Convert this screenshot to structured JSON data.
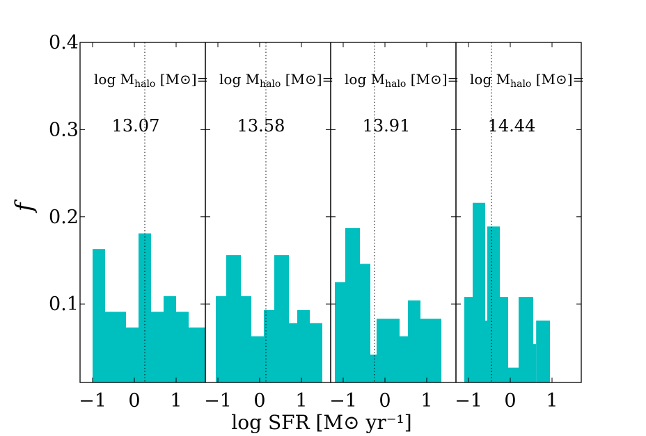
{
  "chart_data": {
    "type": "bar",
    "subtype": "histogram-panels",
    "ylabel": "f",
    "xlabel": "log SFR [M⊙ yr⁻¹]",
    "xlim": [
      -1.3,
      1.7
    ],
    "ylim": [
      0.01,
      0.4
    ],
    "yticks": [
      0.1,
      0.2,
      0.3,
      0.4
    ],
    "ytick_labels": [
      "0.1",
      "0.2",
      "0.3",
      "0.4"
    ],
    "xticks": [
      -1,
      0,
      1
    ],
    "xtick_labels": [
      "−1",
      "0",
      "1"
    ],
    "bar_color": "#00bfbf",
    "panels": [
      {
        "label": "log M",
        "label_sub": "halo",
        "label_tail": " [M⊙]=",
        "halo_mass": "13.07",
        "median": 0.25,
        "bins": [
          {
            "x0": -1.0,
            "x1": -0.7,
            "y": 0.163
          },
          {
            "x0": -0.7,
            "x1": -0.2,
            "y": 0.091
          },
          {
            "x0": -0.2,
            "x1": 0.1,
            "y": 0.073
          },
          {
            "x0": 0.1,
            "x1": 0.4,
            "y": 0.181
          },
          {
            "x0": 0.4,
            "x1": 0.7,
            "y": 0.091
          },
          {
            "x0": 0.7,
            "x1": 1.0,
            "y": 0.109
          },
          {
            "x0": 1.0,
            "x1": 1.3,
            "y": 0.091
          },
          {
            "x0": 1.3,
            "x1": 1.7,
            "y": 0.073
          }
        ]
      },
      {
        "label": "log M",
        "label_sub": "halo",
        "label_tail": " [M⊙]=",
        "halo_mass": "13.58",
        "median": 0.15,
        "bins": [
          {
            "x0": -1.05,
            "x1": -0.8,
            "y": 0.109
          },
          {
            "x0": -0.8,
            "x1": -0.45,
            "y": 0.156
          },
          {
            "x0": -0.45,
            "x1": -0.2,
            "y": 0.109
          },
          {
            "x0": -0.2,
            "x1": 0.1,
            "y": 0.063
          },
          {
            "x0": 0.1,
            "x1": 0.35,
            "y": 0.093
          },
          {
            "x0": 0.35,
            "x1": 0.7,
            "y": 0.156
          },
          {
            "x0": 0.7,
            "x1": 0.9,
            "y": 0.078
          },
          {
            "x0": 0.9,
            "x1": 1.2,
            "y": 0.093
          },
          {
            "x0": 1.2,
            "x1": 1.5,
            "y": 0.078
          }
        ]
      },
      {
        "label": "log M",
        "label_sub": "halo",
        "label_tail": " [M⊙]=",
        "halo_mass": "13.91",
        "median": -0.25,
        "bins": [
          {
            "x0": -1.2,
            "x1": -0.95,
            "y": 0.125
          },
          {
            "x0": -0.95,
            "x1": -0.6,
            "y": 0.187
          },
          {
            "x0": -0.6,
            "x1": -0.35,
            "y": 0.146
          },
          {
            "x0": -0.35,
            "x1": -0.2,
            "y": 0.042
          },
          {
            "x0": -0.2,
            "x1": 0.35,
            "y": 0.083
          },
          {
            "x0": 0.35,
            "x1": 0.55,
            "y": 0.063
          },
          {
            "x0": 0.55,
            "x1": 0.85,
            "y": 0.104
          },
          {
            "x0": 0.85,
            "x1": 1.35,
            "y": 0.083
          }
        ]
      },
      {
        "label": "log M",
        "label_sub": "halo",
        "label_tail": " [M⊙]=",
        "halo_mass": "14.44",
        "median": -0.45,
        "bins": [
          {
            "x0": -1.1,
            "x1": -0.9,
            "y": 0.108
          },
          {
            "x0": -0.9,
            "x1": -0.6,
            "y": 0.216
          },
          {
            "x0": -0.6,
            "x1": -0.55,
            "y": 0.081
          },
          {
            "x0": -0.55,
            "x1": -0.25,
            "y": 0.189
          },
          {
            "x0": -0.25,
            "x1": -0.05,
            "y": 0.108
          },
          {
            "x0": -0.05,
            "x1": 0.2,
            "y": 0.027
          },
          {
            "x0": 0.2,
            "x1": 0.55,
            "y": 0.108
          },
          {
            "x0": 0.55,
            "x1": 0.62,
            "y": 0.054
          },
          {
            "x0": 0.62,
            "x1": 0.95,
            "y": 0.081
          }
        ]
      }
    ]
  }
}
